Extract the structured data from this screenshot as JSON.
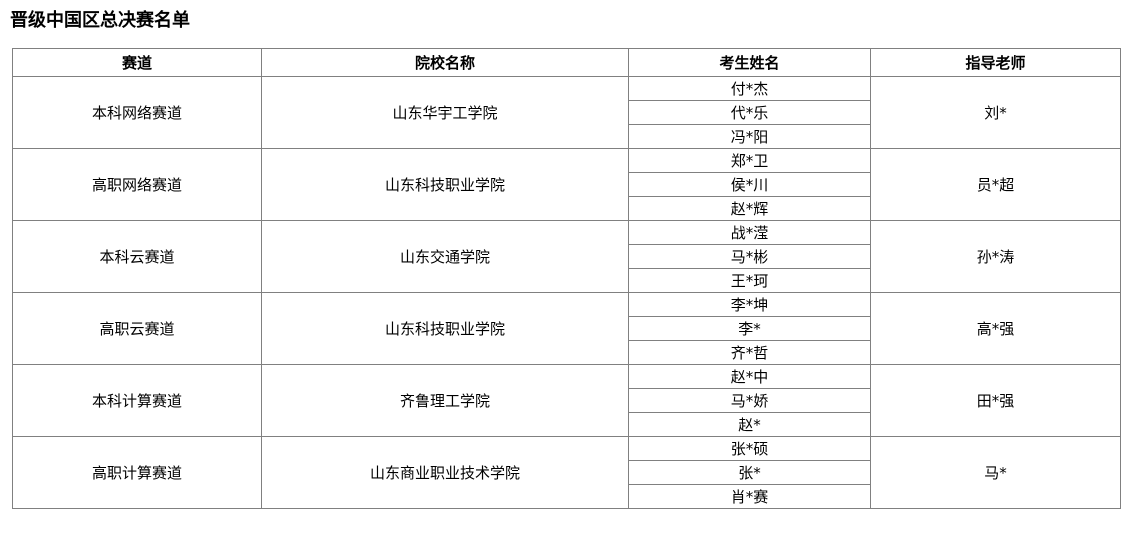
{
  "title": "晋级中国区总决赛名单",
  "table": {
    "headers": [
      "赛道",
      "院校名称",
      "考生姓名",
      "指导老师"
    ],
    "groups": [
      {
        "track": "本科网络赛道",
        "school": "山东华宇工学院",
        "candidates": [
          "付*杰",
          "代*乐",
          "冯*阳"
        ],
        "teacher": "刘*"
      },
      {
        "track": "高职网络赛道",
        "school": "山东科技职业学院",
        "candidates": [
          "郑*卫",
          "侯*川",
          "赵*辉"
        ],
        "teacher": "员*超"
      },
      {
        "track": "本科云赛道",
        "school": "山东交通学院",
        "candidates": [
          "战*滢",
          "马*彬",
          "王*珂"
        ],
        "teacher": "孙*涛"
      },
      {
        "track": "高职云赛道",
        "school": "山东科技职业学院",
        "candidates": [
          "李*坤",
          "李*",
          "齐*哲"
        ],
        "teacher": "高*强"
      },
      {
        "track": "本科计算赛道",
        "school": "齐鲁理工学院",
        "candidates": [
          "赵*中",
          "马*娇",
          "赵*"
        ],
        "teacher": "田*强"
      },
      {
        "track": "高职计算赛道",
        "school": "山东商业职业技术学院",
        "candidates": [
          "张*硕",
          "张*",
          "肖*赛"
        ],
        "teacher": "马*"
      }
    ]
  },
  "colors": {
    "border": "#808080",
    "text": "#000000",
    "background": "#ffffff"
  }
}
